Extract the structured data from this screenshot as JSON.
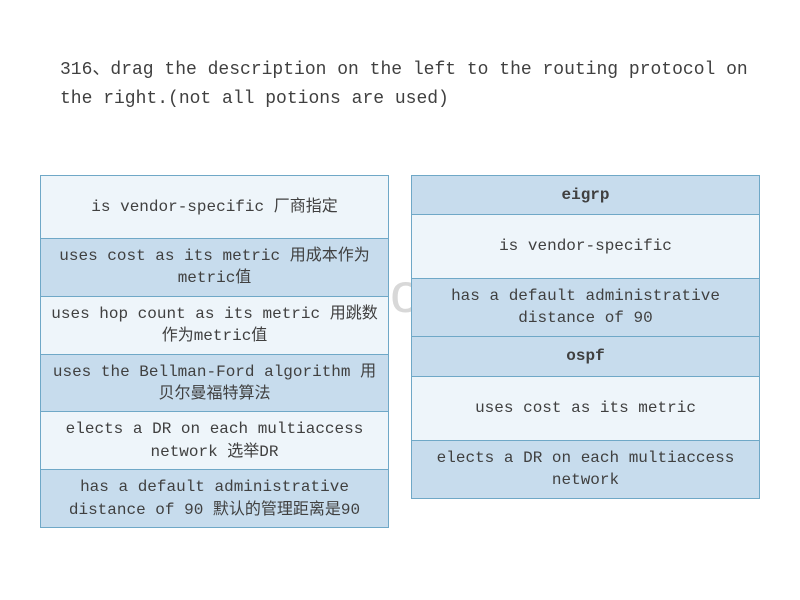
{
  "question": "316、drag the description on the left to the routing protocol on the right.(not all potions are used)",
  "watermark": "jinchutou.com",
  "colors": {
    "border": "#6fa8c7",
    "bg_light": "#eef5fa",
    "bg_dark": "#c7dced",
    "text": "#404040",
    "watermark": "#d8d8d8",
    "page_bg": "#ffffff"
  },
  "left_column": {
    "rows": [
      {
        "text": "is vendor-specific 厂商指定",
        "bg": "light",
        "height": "h64"
      },
      {
        "text": "uses cost as its metric 用成本作为metric值",
        "bg": "dark",
        "height": "h52"
      },
      {
        "text": "uses hop count as its metric 用跳数作为metric值",
        "bg": "light",
        "height": "h52"
      },
      {
        "text": "uses the Bellman-Ford algorithm 用贝尔曼福特算法",
        "bg": "dark",
        "height": "h52"
      },
      {
        "text": "elects a DR on each multiaccess network 选举DR",
        "bg": "light",
        "height": "h52"
      },
      {
        "text": "has a default administrative distance of 90 默认的管理距离是90",
        "bg": "dark",
        "height": "h52"
      }
    ]
  },
  "right_column": {
    "rows": [
      {
        "text": "eigrp",
        "bg": "dark",
        "height": "h40",
        "bold": true
      },
      {
        "text": "is vendor-specific",
        "bg": "light",
        "height": "h64"
      },
      {
        "text": "has a default administrative distance of 90",
        "bg": "dark",
        "height": "h52"
      },
      {
        "text": "ospf",
        "bg": "dark",
        "height": "h40",
        "bold": true
      },
      {
        "text": "uses cost as its metric",
        "bg": "light",
        "height": "h64"
      },
      {
        "text": "elects a DR on each multiaccess network",
        "bg": "dark",
        "height": "h52"
      }
    ]
  }
}
